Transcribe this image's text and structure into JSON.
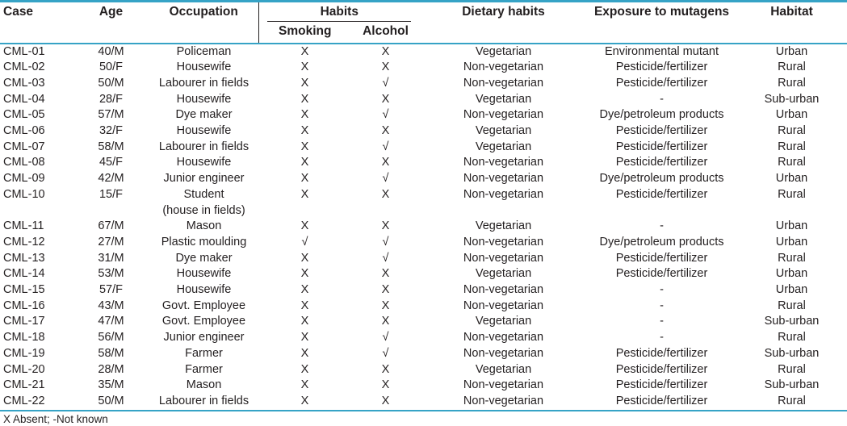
{
  "table": {
    "columns": {
      "case": "Case",
      "age": "Age",
      "occupation": "Occupation",
      "habits_group": "Habits",
      "smoking": "Smoking",
      "alcohol": "Alcohol",
      "dietary": "Dietary habits",
      "exposure": "Exposure to mutagens",
      "habitat": "Habitat"
    },
    "keys": [
      "case",
      "age",
      "occupation",
      "smoking",
      "alcohol",
      "dietary",
      "exposure",
      "habitat"
    ],
    "rows": [
      {
        "case": "CML-01",
        "age": "40/M",
        "occupation": "Policeman",
        "smoking": "X",
        "alcohol": "X",
        "dietary": "Vegetarian",
        "exposure": "Environmental mutant",
        "habitat": "Urban"
      },
      {
        "case": "CML-02",
        "age": "50/F",
        "occupation": "Housewife",
        "smoking": "X",
        "alcohol": "X",
        "dietary": "Non-vegetarian",
        "exposure": "Pesticide/fertilizer",
        "habitat": "Rural"
      },
      {
        "case": "CML-03",
        "age": "50/M",
        "occupation": "Labourer in fields",
        "smoking": "X",
        "alcohol": "√",
        "dietary": "Non-vegetarian",
        "exposure": "Pesticide/fertilizer",
        "habitat": "Rural"
      },
      {
        "case": "CML-04",
        "age": "28/F",
        "occupation": "Housewife",
        "smoking": "X",
        "alcohol": "X",
        "dietary": "Vegetarian",
        "exposure": "-",
        "habitat": "Sub-urban"
      },
      {
        "case": "CML-05",
        "age": "57/M",
        "occupation": "Dye maker",
        "smoking": "X",
        "alcohol": "√",
        "dietary": "Non-vegetarian",
        "exposure": "Dye/petroleum products",
        "habitat": "Urban"
      },
      {
        "case": "CML-06",
        "age": "32/F",
        "occupation": "Housewife",
        "smoking": "X",
        "alcohol": "X",
        "dietary": "Vegetarian",
        "exposure": "Pesticide/fertilizer",
        "habitat": "Rural"
      },
      {
        "case": "CML-07",
        "age": "58/M",
        "occupation": "Labourer in fields",
        "smoking": "X",
        "alcohol": "√",
        "dietary": "Vegetarian",
        "exposure": "Pesticide/fertilizer",
        "habitat": "Rural"
      },
      {
        "case": "CML-08",
        "age": "45/F",
        "occupation": "Housewife",
        "smoking": "X",
        "alcohol": "X",
        "dietary": "Non-vegetarian",
        "exposure": "Pesticide/fertilizer",
        "habitat": "Rural"
      },
      {
        "case": "CML-09",
        "age": "42/M",
        "occupation": "Junior engineer",
        "smoking": "X",
        "alcohol": "√",
        "dietary": "Non-vegetarian",
        "exposure": "Dye/petroleum products",
        "habitat": "Urban"
      },
      {
        "case": "CML-10",
        "age": "15/F",
        "occupation": "Student",
        "occupation_note": "(house in fields)",
        "smoking": "X",
        "alcohol": "X",
        "dietary": "Non-vegetarian",
        "exposure": "Pesticide/fertilizer",
        "habitat": "Rural"
      },
      {
        "case": "CML-11",
        "age": "67/M",
        "occupation": "Mason",
        "smoking": "X",
        "alcohol": "X",
        "dietary": "Vegetarian",
        "exposure": "-",
        "habitat": "Urban"
      },
      {
        "case": "CML-12",
        "age": "27/M",
        "occupation": "Plastic moulding",
        "smoking": "√",
        "alcohol": "√",
        "dietary": "Non-vegetarian",
        "exposure": "Dye/petroleum products",
        "habitat": "Urban"
      },
      {
        "case": "CML-13",
        "age": "31/M",
        "occupation": "Dye maker",
        "smoking": "X",
        "alcohol": "√",
        "dietary": "Non-vegetarian",
        "exposure": "Pesticide/fertilizer",
        "habitat": "Rural"
      },
      {
        "case": "CML-14",
        "age": "53/M",
        "occupation": "Housewife",
        "smoking": "X",
        "alcohol": "X",
        "dietary": "Vegetarian",
        "exposure": "Pesticide/fertilizer",
        "habitat": "Urban"
      },
      {
        "case": "CML-15",
        "age": "57/F",
        "occupation": "Housewife",
        "smoking": "X",
        "alcohol": "X",
        "dietary": "Non-vegetarian",
        "exposure": "-",
        "habitat": "Urban"
      },
      {
        "case": "CML-16",
        "age": "43/M",
        "occupation": "Govt. Employee",
        "smoking": "X",
        "alcohol": "X",
        "dietary": "Non-vegetarian",
        "exposure": "-",
        "habitat": "Rural"
      },
      {
        "case": "CML-17",
        "age": "47/M",
        "occupation": "Govt. Employee",
        "smoking": "X",
        "alcohol": "X",
        "dietary": "Vegetarian",
        "exposure": "-",
        "habitat": "Sub-urban"
      },
      {
        "case": "CML-18",
        "age": "56/M",
        "occupation": "Junior engineer",
        "smoking": "X",
        "alcohol": "√",
        "dietary": "Non-vegetarian",
        "exposure": "-",
        "habitat": "Rural"
      },
      {
        "case": "CML-19",
        "age": "58/M",
        "occupation": "Farmer",
        "smoking": "X",
        "alcohol": "√",
        "dietary": "Non-vegetarian",
        "exposure": "Pesticide/fertilizer",
        "habitat": "Sub-urban"
      },
      {
        "case": "CML-20",
        "age": "28/M",
        "occupation": "Farmer",
        "smoking": "X",
        "alcohol": "X",
        "dietary": "Vegetarian",
        "exposure": "Pesticide/fertilizer",
        "habitat": "Rural"
      },
      {
        "case": "CML-21",
        "age": "35/M",
        "occupation": "Mason",
        "smoking": "X",
        "alcohol": "X",
        "dietary": "Non-vegetarian",
        "exposure": "Pesticide/fertilizer",
        "habitat": "Sub-urban"
      },
      {
        "case": "CML-22",
        "age": "50/M",
        "occupation": "Labourer in fields",
        "smoking": "X",
        "alcohol": "X",
        "dietary": "Non-vegetarian",
        "exposure": "Pesticide/fertilizer",
        "habitat": "Rural"
      }
    ],
    "footnote": "X Absent; -Not known",
    "symbols": {
      "absent": "X",
      "present": "√",
      "not_known": "-"
    },
    "colors": {
      "rule_teal": "#36a3c6",
      "text": "#231f20"
    }
  }
}
